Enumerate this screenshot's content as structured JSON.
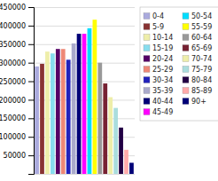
{
  "chart_data": {
    "type": "bar",
    "categories": [
      "0-4",
      "5-9",
      "10-14",
      "15-19",
      "20-24",
      "25-29",
      "30-34",
      "35-39",
      "40-44",
      "45-49",
      "50-54",
      "55-59",
      "60-64",
      "65-69",
      "70-74",
      "75-79",
      "80-84",
      "85-89",
      "90+"
    ],
    "values": [
      290000,
      297000,
      330000,
      325000,
      337000,
      337000,
      308000,
      352000,
      378000,
      378000,
      393000,
      416000,
      300000,
      244000,
      207000,
      178000,
      125000,
      65000,
      30000
    ],
    "colors": [
      "#aaaadd",
      "#883333",
      "#eeeeaa",
      "#88ddee",
      "#550066",
      "#ee8877",
      "#2222bb",
      "#aaaacc",
      "#000077",
      "#ff00ff",
      "#00ddff",
      "#ffff00",
      "#999999",
      "#772233",
      "#eeeeaa",
      "#aadddd",
      "#220044",
      "#ffaaaa",
      "#000077"
    ],
    "ylim": [
      0,
      450000
    ],
    "yticks": [
      {
        "value": 0,
        "label": null
      },
      50000,
      100000,
      150000,
      200000,
      250000,
      300000,
      350000,
      400000,
      450000
    ],
    "grid": true,
    "legend": "right",
    "tick_labels": "y"
  }
}
